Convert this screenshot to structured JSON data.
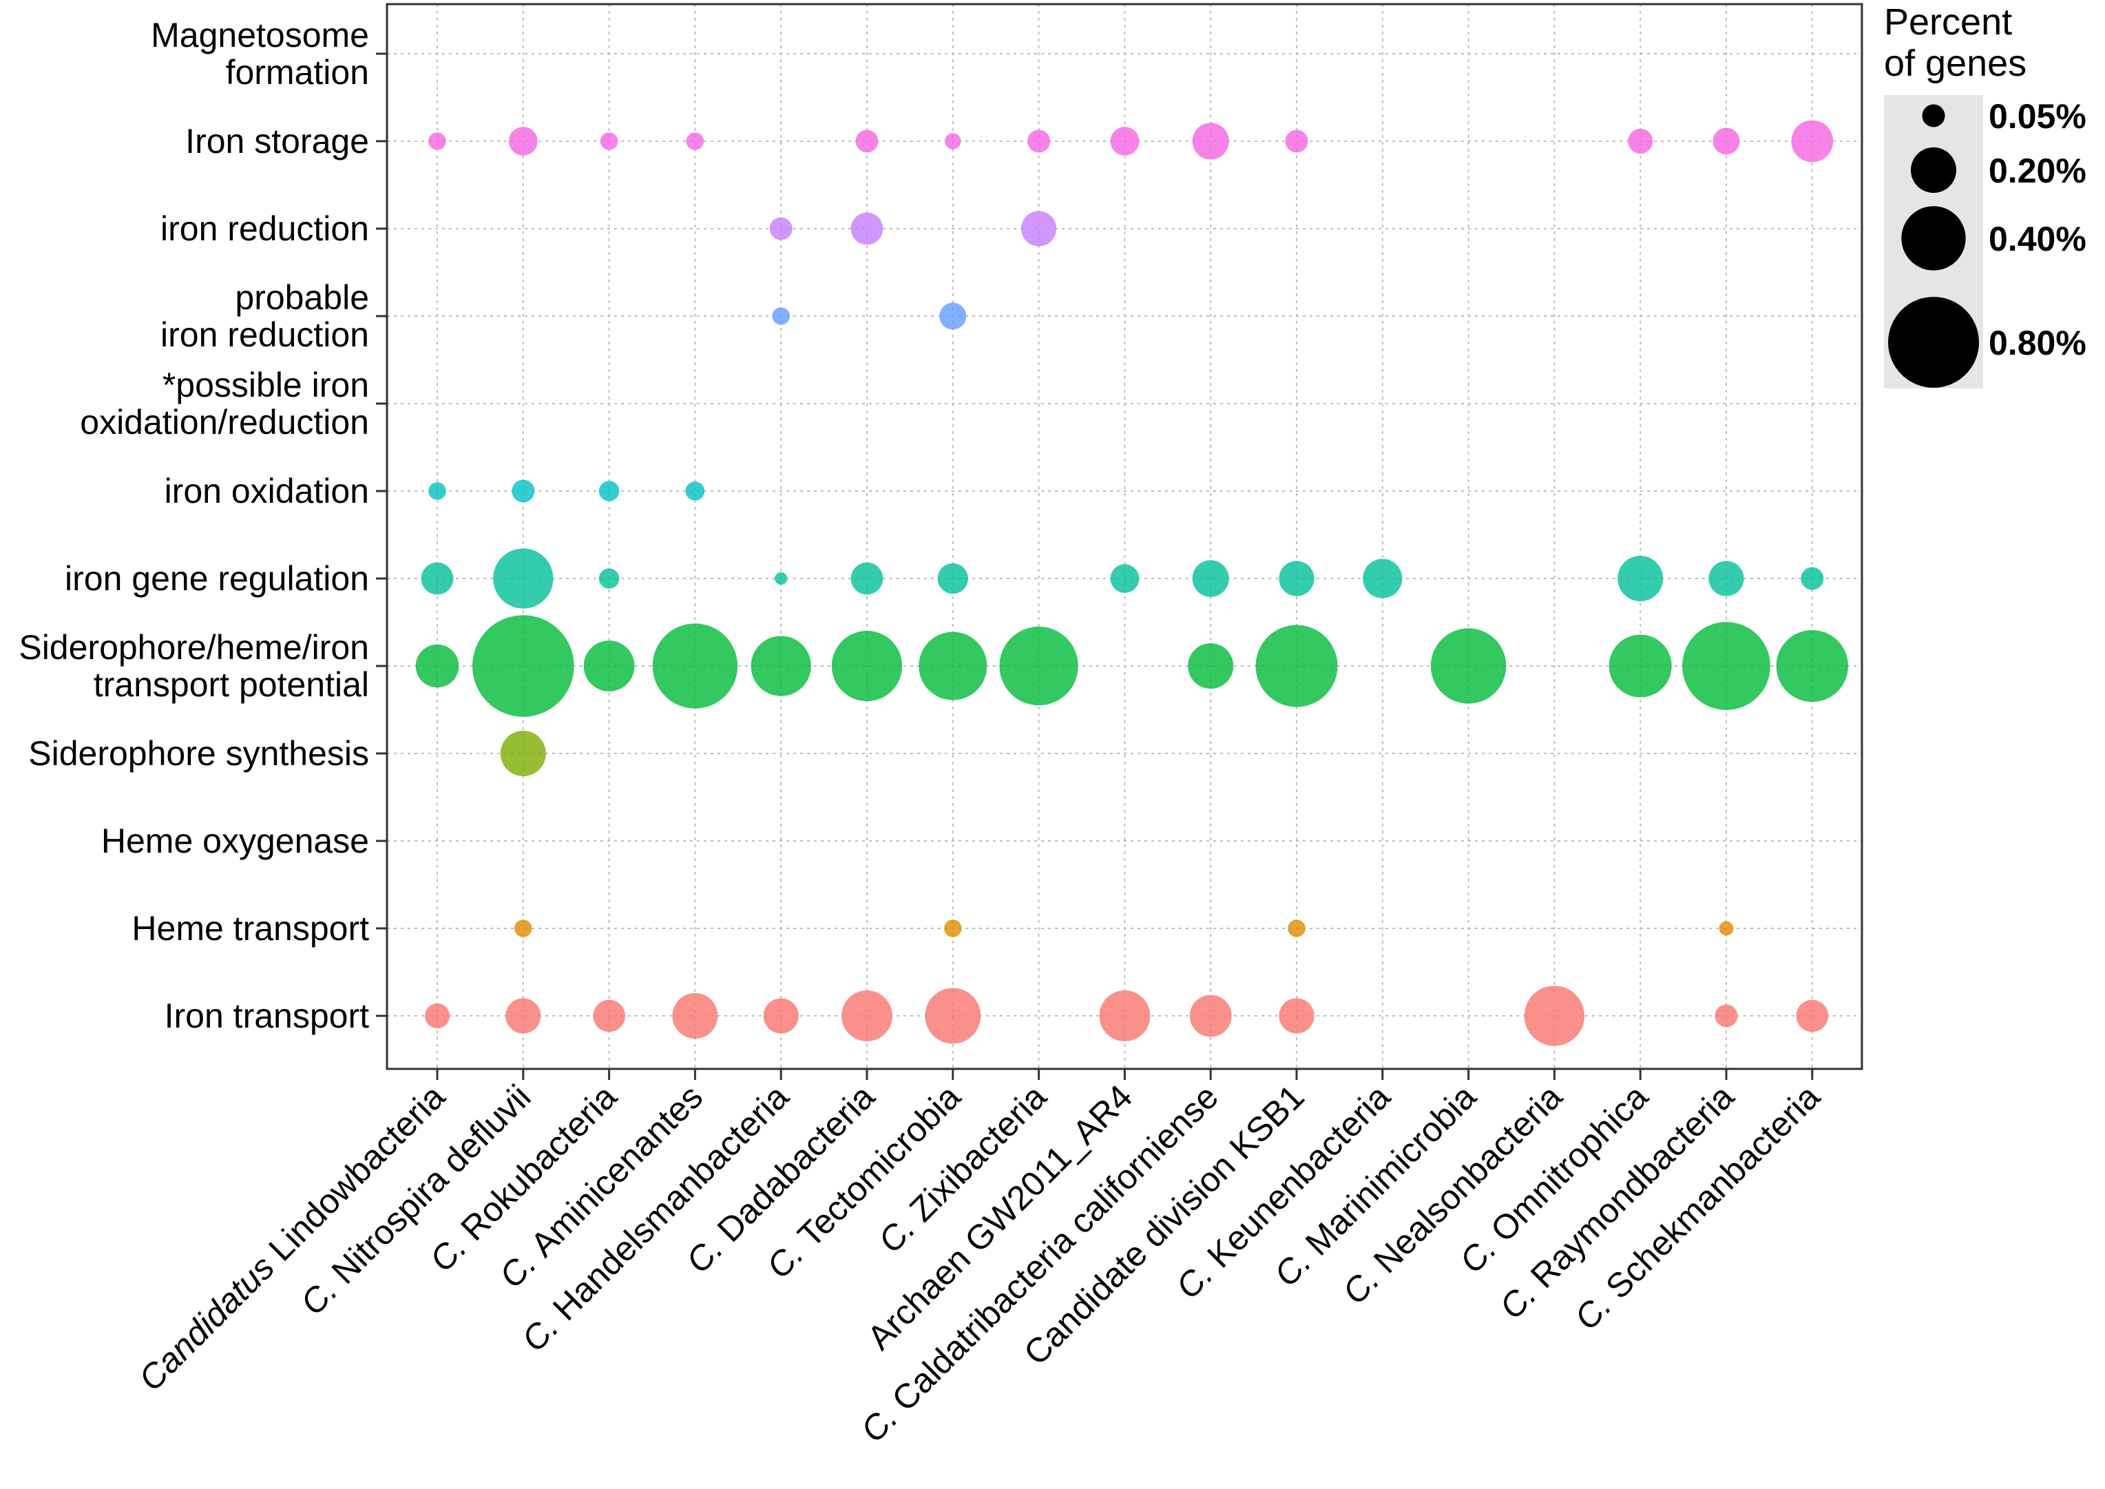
{
  "chart_data": {
    "type": "bubble",
    "title": "",
    "xlabel": "",
    "ylabel": "",
    "grid": true,
    "legend_position": "right",
    "categories_x": [
      {
        "prefix": "Candidatus",
        "name": "Lindowbacteria"
      },
      {
        "prefix": "C.",
        "name": "Nitrospira defluvii"
      },
      {
        "prefix": "C.",
        "name": "Rokubacteria"
      },
      {
        "prefix": "C.",
        "name": "Aminicenantes"
      },
      {
        "prefix": "C.",
        "name": "Handelsmanbacteria"
      },
      {
        "prefix": "C.",
        "name": "Dadabacteria"
      },
      {
        "prefix": "C.",
        "name": "Tectomicrobia"
      },
      {
        "prefix": "C.",
        "name": "Zixibacteria"
      },
      {
        "prefix": "",
        "name": "Archaen GW2011_AR4"
      },
      {
        "prefix": "C.",
        "name": "Caldatribacteria californiense"
      },
      {
        "prefix": "",
        "name": "Candidate division KSB1"
      },
      {
        "prefix": "C.",
        "name": "Keunenbacteria"
      },
      {
        "prefix": "C.",
        "name": "Marinimicrobia"
      },
      {
        "prefix": "C.",
        "name": "Nealsonbacteria"
      },
      {
        "prefix": "C.",
        "name": "Omnitrophica"
      },
      {
        "prefix": "C.",
        "name": "Raymondbacteria"
      },
      {
        "prefix": "C.",
        "name": "Schekmanbacteria"
      }
    ],
    "categories_y": [
      {
        "lines": [
          "Magnetosome",
          "formation"
        ],
        "color": "#ff61c3"
      },
      {
        "lines": [
          "Iron storage"
        ],
        "color": "#f564e3"
      },
      {
        "lines": [
          "iron reduction"
        ],
        "color": "#c77cff"
      },
      {
        "lines": [
          "probable",
          "iron reduction"
        ],
        "color": "#619cff"
      },
      {
        "lines": [
          "*possible iron",
          "oxidation/reduction"
        ],
        "color": "#00b9e3"
      },
      {
        "lines": [
          "iron oxidation"
        ],
        "color": "#00bfc4"
      },
      {
        "lines": [
          "iron gene regulation"
        ],
        "color": "#00c19a"
      },
      {
        "lines": [
          "Siderophore/heme/iron",
          "transport potential"
        ],
        "color": "#00ba38"
      },
      {
        "lines": [
          "Siderophore synthesis"
        ],
        "color": "#7cae00"
      },
      {
        "lines": [
          "Heme oxygenase"
        ],
        "color": "#b79f00"
      },
      {
        "lines": [
          "Heme transport"
        ],
        "color": "#de8c00"
      },
      {
        "lines": [
          "Iron transport"
        ],
        "color": "#f8766d"
      }
    ],
    "points": [
      {
        "y": 1,
        "x": 0,
        "value": 0.03
      },
      {
        "y": 1,
        "x": 1,
        "value": 0.08
      },
      {
        "y": 1,
        "x": 2,
        "value": 0.03
      },
      {
        "y": 1,
        "x": 3,
        "value": 0.03
      },
      {
        "y": 1,
        "x": 5,
        "value": 0.05
      },
      {
        "y": 1,
        "x": 6,
        "value": 0.025
      },
      {
        "y": 1,
        "x": 7,
        "value": 0.05
      },
      {
        "y": 1,
        "x": 8,
        "value": 0.08
      },
      {
        "y": 1,
        "x": 9,
        "value": 0.13
      },
      {
        "y": 1,
        "x": 10,
        "value": 0.05
      },
      {
        "y": 1,
        "x": 14,
        "value": 0.06
      },
      {
        "y": 1,
        "x": 15,
        "value": 0.07
      },
      {
        "y": 1,
        "x": 16,
        "value": 0.17
      },
      {
        "y": 2,
        "x": 4,
        "value": 0.05
      },
      {
        "y": 2,
        "x": 5,
        "value": 0.1
      },
      {
        "y": 2,
        "x": 7,
        "value": 0.12
      },
      {
        "y": 3,
        "x": 4,
        "value": 0.03
      },
      {
        "y": 3,
        "x": 6,
        "value": 0.07
      },
      {
        "y": 5,
        "x": 0,
        "value": 0.03
      },
      {
        "y": 5,
        "x": 1,
        "value": 0.05
      },
      {
        "y": 5,
        "x": 2,
        "value": 0.04
      },
      {
        "y": 5,
        "x": 3,
        "value": 0.035
      },
      {
        "y": 6,
        "x": 0,
        "value": 0.1
      },
      {
        "y": 6,
        "x": 1,
        "value": 0.35
      },
      {
        "y": 6,
        "x": 2,
        "value": 0.04
      },
      {
        "y": 6,
        "x": 4,
        "value": 0.015
      },
      {
        "y": 6,
        "x": 5,
        "value": 0.1
      },
      {
        "y": 6,
        "x": 6,
        "value": 0.09
      },
      {
        "y": 6,
        "x": 8,
        "value": 0.08
      },
      {
        "y": 6,
        "x": 9,
        "value": 0.13
      },
      {
        "y": 6,
        "x": 10,
        "value": 0.12
      },
      {
        "y": 6,
        "x": 11,
        "value": 0.15
      },
      {
        "y": 6,
        "x": 14,
        "value": 0.2
      },
      {
        "y": 6,
        "x": 15,
        "value": 0.12
      },
      {
        "y": 6,
        "x": 16,
        "value": 0.05
      },
      {
        "y": 7,
        "x": 0,
        "value": 0.18
      },
      {
        "y": 7,
        "x": 1,
        "value": 1.0
      },
      {
        "y": 7,
        "x": 2,
        "value": 0.25
      },
      {
        "y": 7,
        "x": 3,
        "value": 0.7
      },
      {
        "y": 7,
        "x": 4,
        "value": 0.35
      },
      {
        "y": 7,
        "x": 5,
        "value": 0.48
      },
      {
        "y": 7,
        "x": 6,
        "value": 0.45
      },
      {
        "y": 7,
        "x": 7,
        "value": 0.6
      },
      {
        "y": 7,
        "x": 9,
        "value": 0.2
      },
      {
        "y": 7,
        "x": 10,
        "value": 0.65
      },
      {
        "y": 7,
        "x": 12,
        "value": 0.55
      },
      {
        "y": 7,
        "x": 14,
        "value": 0.38
      },
      {
        "y": 7,
        "x": 15,
        "value": 0.75
      },
      {
        "y": 7,
        "x": 16,
        "value": 0.5
      },
      {
        "y": 8,
        "x": 1,
        "value": 0.2
      },
      {
        "y": 10,
        "x": 1,
        "value": 0.03
      },
      {
        "y": 10,
        "x": 6,
        "value": 0.03
      },
      {
        "y": 10,
        "x": 10,
        "value": 0.03
      },
      {
        "y": 10,
        "x": 15,
        "value": 0.02
      },
      {
        "y": 11,
        "x": 0,
        "value": 0.06
      },
      {
        "y": 11,
        "x": 1,
        "value": 0.12
      },
      {
        "y": 11,
        "x": 2,
        "value": 0.1
      },
      {
        "y": 11,
        "x": 3,
        "value": 0.2
      },
      {
        "y": 11,
        "x": 4,
        "value": 0.12
      },
      {
        "y": 11,
        "x": 5,
        "value": 0.25
      },
      {
        "y": 11,
        "x": 6,
        "value": 0.3
      },
      {
        "y": 11,
        "x": 8,
        "value": 0.25
      },
      {
        "y": 11,
        "x": 9,
        "value": 0.17
      },
      {
        "y": 11,
        "x": 10,
        "value": 0.12
      },
      {
        "y": 11,
        "x": 13,
        "value": 0.35
      },
      {
        "y": 11,
        "x": 15,
        "value": 0.05
      },
      {
        "y": 11,
        "x": 16,
        "value": 0.1
      }
    ],
    "legend": {
      "title_lines": [
        "Percent",
        "of genes"
      ],
      "entries": [
        {
          "label": "0.05%",
          "value": 0.05
        },
        {
          "label": "0.20%",
          "value": 0.2
        },
        {
          "label": "0.40%",
          "value": 0.4
        },
        {
          "label": "0.80%",
          "value": 0.8
        }
      ]
    }
  }
}
